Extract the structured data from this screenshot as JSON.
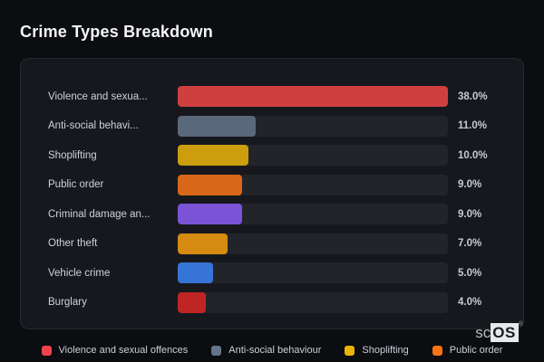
{
  "page": {
    "title": "Crime Types Breakdown"
  },
  "chart_data": {
    "type": "bar",
    "orientation": "horizontal",
    "title": "Crime Types Breakdown",
    "xlabel": "",
    "ylabel": "",
    "xlim": [
      0,
      38
    ],
    "unit": "%",
    "grid": false,
    "categories": [
      "Violence and sexual offences",
      "Anti-social behaviour",
      "Shoplifting",
      "Public order",
      "Criminal damage and arson",
      "Other theft",
      "Vehicle crime",
      "Burglary"
    ],
    "display_labels": [
      "Violence and sexua...",
      "Anti-social behavi...",
      "Shoplifting",
      "Public order",
      "Criminal damage an...",
      "Other theft",
      "Vehicle crime",
      "Burglary"
    ],
    "values": [
      38.0,
      11.0,
      10.0,
      9.0,
      9.0,
      7.0,
      5.0,
      4.0
    ],
    "value_labels": [
      "38.0%",
      "11.0%",
      "10.0%",
      "9.0%",
      "9.0%",
      "7.0%",
      "5.0%",
      "4.0%"
    ],
    "colors": [
      "#ef4444",
      "#64748b",
      "#eab308",
      "#f97316",
      "#8b5cf6",
      "#f59e0b",
      "#3b82f6",
      "#dc2626"
    ]
  },
  "legend": {
    "position": "bottom",
    "items": [
      {
        "label": "Violence and sexual offences",
        "color": "#ef4450"
      },
      {
        "label": "Anti-social behaviour",
        "color": "#64748b"
      },
      {
        "label": "Shoplifting",
        "color": "#eab308"
      },
      {
        "label": "Public order",
        "color": "#f97316"
      }
    ]
  },
  "watermark": {
    "prefix": "sc",
    "suffix": "OS",
    "reg": "®"
  }
}
